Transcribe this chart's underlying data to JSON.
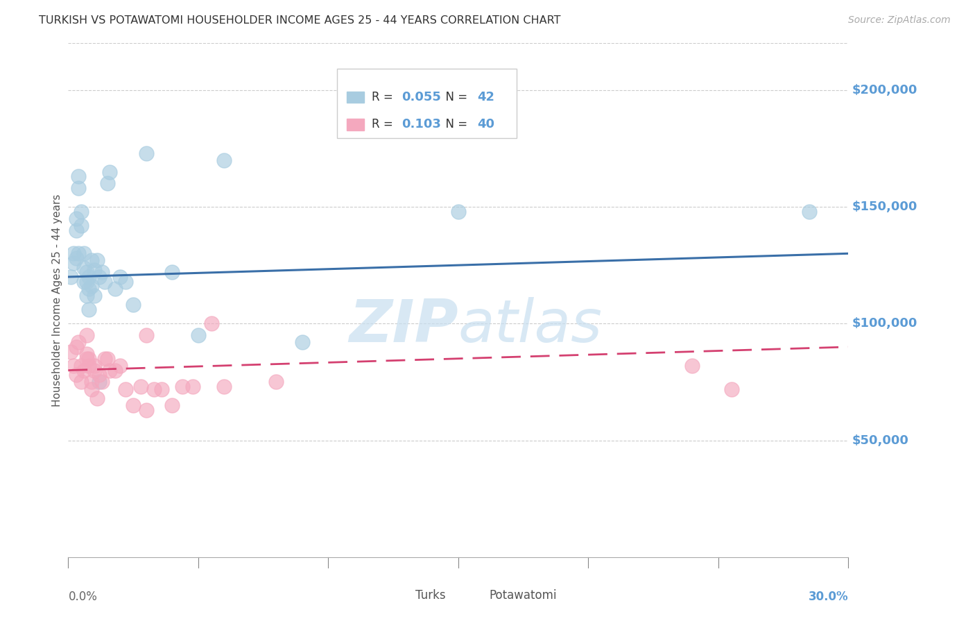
{
  "title": "TURKISH VS POTAWATOMI HOUSEHOLDER INCOME AGES 25 - 44 YEARS CORRELATION CHART",
  "source": "Source: ZipAtlas.com",
  "ylabel": "Householder Income Ages 25 - 44 years",
  "ytick_values": [
    50000,
    100000,
    150000,
    200000
  ],
  "ytick_labels": [
    "$50,000",
    "$100,000",
    "$150,000",
    "$200,000"
  ],
  "ylim": [
    0,
    220000
  ],
  "xlim": [
    0.0,
    0.3
  ],
  "legend_blue_r": "0.055",
  "legend_blue_n": "42",
  "legend_pink_r": "0.103",
  "legend_pink_n": "40",
  "blue_scatter_color": "#a8cce0",
  "blue_line_color": "#3a6fa8",
  "pink_scatter_color": "#f4a8be",
  "pink_line_color": "#d44070",
  "grid_color": "#cccccc",
  "title_color": "#333333",
  "source_color": "#aaaaaa",
  "tick_label_color": "#5b9bd5",
  "legend_text_color": "#5b9bd5",
  "legend_label_color": "#333333",
  "watermark_color": "#c8dff0",
  "background_color": "#ffffff",
  "turks_x": [
    0.001,
    0.002,
    0.002,
    0.003,
    0.003,
    0.004,
    0.004,
    0.005,
    0.005,
    0.006,
    0.006,
    0.007,
    0.007,
    0.008,
    0.008,
    0.009,
    0.009,
    0.01,
    0.01,
    0.011,
    0.012,
    0.013,
    0.014,
    0.015,
    0.016,
    0.018,
    0.02,
    0.022,
    0.025,
    0.03,
    0.04,
    0.05,
    0.06,
    0.09,
    0.15,
    0.285,
    0.003,
    0.004,
    0.006,
    0.007,
    0.008,
    0.012
  ],
  "turks_y": [
    120000,
    126000,
    130000,
    128000,
    140000,
    158000,
    163000,
    148000,
    142000,
    130000,
    124000,
    118000,
    122000,
    115000,
    120000,
    127000,
    116000,
    112000,
    123000,
    127000,
    120000,
    122000,
    118000,
    160000,
    165000,
    115000,
    120000,
    118000,
    108000,
    173000,
    122000,
    95000,
    170000,
    92000,
    148000,
    148000,
    145000,
    130000,
    118000,
    112000,
    106000,
    75000
  ],
  "potawatomi_x": [
    0.001,
    0.002,
    0.003,
    0.003,
    0.004,
    0.005,
    0.005,
    0.006,
    0.007,
    0.007,
    0.008,
    0.008,
    0.009,
    0.009,
    0.01,
    0.011,
    0.012,
    0.013,
    0.014,
    0.015,
    0.016,
    0.018,
    0.02,
    0.022,
    0.025,
    0.028,
    0.03,
    0.033,
    0.036,
    0.04,
    0.044,
    0.048,
    0.055,
    0.06,
    0.08,
    0.24,
    0.255,
    0.007,
    0.01,
    0.03
  ],
  "potawatomi_y": [
    88000,
    82000,
    90000,
    78000,
    92000,
    82000,
    75000,
    80000,
    87000,
    95000,
    82000,
    85000,
    75000,
    72000,
    82000,
    68000,
    78000,
    75000,
    85000,
    85000,
    80000,
    80000,
    82000,
    72000,
    65000,
    73000,
    95000,
    72000,
    72000,
    65000,
    73000,
    73000,
    100000,
    73000,
    75000,
    82000,
    72000,
    85000,
    80000,
    63000
  ]
}
